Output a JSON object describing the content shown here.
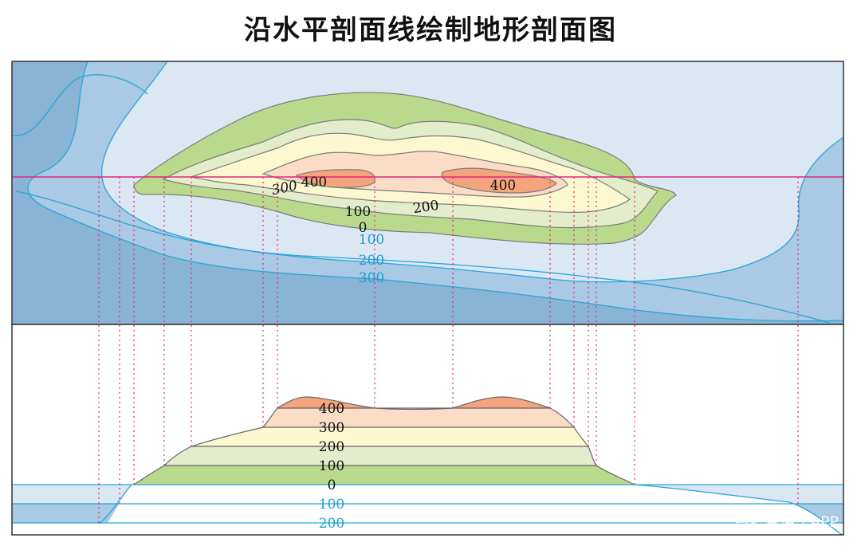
{
  "title": "沿水平剖面线绘制地形剖面图",
  "map": {
    "land_labels": [
      "400",
      "300",
      "400",
      "100",
      "200",
      "0"
    ],
    "sea_labels": [
      "100",
      "200",
      "300"
    ]
  },
  "profile": {
    "land_labels": [
      "400",
      "300",
      "200",
      "100",
      "0"
    ],
    "sea_labels": [
      "100",
      "200"
    ]
  },
  "watermark": "高考直通车APP",
  "colors": {
    "sea_deep": "#8ab4d6",
    "sea_mid": "#aac9e4",
    "sea_shallow": "#dce7f4",
    "land_0_100": "#b9d98c",
    "land_100_200": "#e3edcb",
    "land_200_300": "#fdf8cf",
    "land_300_400": "#fbdcc6",
    "land_400": "#f5a57e",
    "contour_sea": "#27a6d8",
    "contour_land": "#7d7d7d",
    "section_line": "#e2257a"
  }
}
